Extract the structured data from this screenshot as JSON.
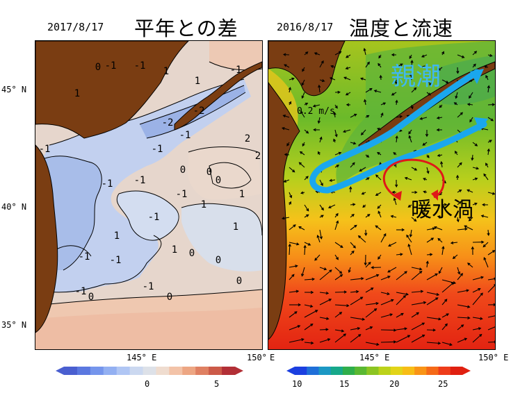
{
  "left_panel": {
    "date": "2017/8/17",
    "title": "平年との差",
    "contour_labels": [
      "0",
      "-1",
      "-1",
      "1",
      "1",
      "-1",
      "-2",
      "-2",
      "-1",
      "-1",
      "2",
      "0",
      "-1",
      "-1",
      "-1",
      "0",
      "1",
      "1",
      "-1",
      "1",
      "-1",
      "-1",
      "0",
      "-1",
      "0",
      "0",
      "1",
      "-1",
      "0",
      "1",
      "0",
      "-1",
      "1",
      "2",
      "0"
    ],
    "colorbar": {
      "tick_labels": [
        "0",
        "5"
      ],
      "min": -5,
      "max": 5,
      "colors": [
        "#4a5fd0",
        "#5b78e0",
        "#7595ec",
        "#93b0f2",
        "#b0c6f4",
        "#cbd8f0",
        "#dde1e8",
        "#efdccf",
        "#f3c3a8",
        "#eda683",
        "#df8062",
        "#cc5a48",
        "#b22f36"
      ]
    }
  },
  "right_panel": {
    "date": "2016/8/17",
    "title": "温度と流速",
    "vector_label": "0.2 m/s",
    "oyashio_label": "親潮",
    "eddy_label": "暖水渦",
    "colorbar": {
      "tick_labels": [
        "10",
        "15",
        "20",
        "25"
      ],
      "min": 8,
      "max": 28,
      "colors": [
        "#1b3fe0",
        "#1f6fd8",
        "#1c98c4",
        "#17a88a",
        "#2fae4b",
        "#5ab832",
        "#8cc522",
        "#bcd21a",
        "#e2d418",
        "#f7bd16",
        "#f99416",
        "#f56a18",
        "#ee3c1a",
        "#e02010"
      ]
    }
  },
  "axes": {
    "lat_labels": [
      "45° N",
      "40° N",
      "35° N"
    ],
    "lon_labels_left": [
      "145° E",
      "150°"
    ],
    "lon_labels_right": [
      "145° E",
      "150° E"
    ],
    "e_label": "E"
  },
  "colors": {
    "land": "#7a3d12",
    "oyashio_arrow": "#1aa7ee",
    "eddy_arrow": "#e01818",
    "oyashio_text": "#3fb8f0"
  }
}
